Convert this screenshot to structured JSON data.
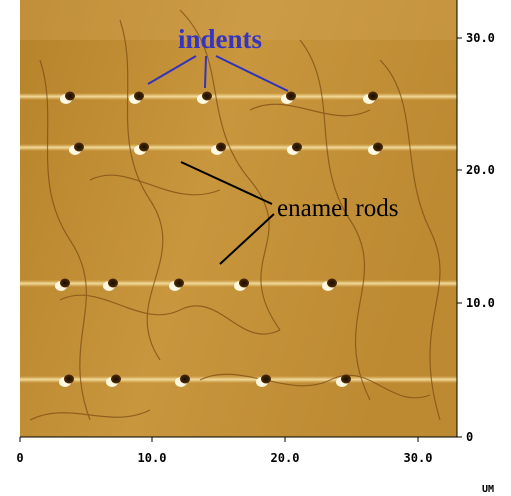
{
  "annotations": {
    "indents": "indents",
    "rods": "enamel rods"
  },
  "right_axis": {
    "ticks": [
      "30.0",
      "20.0",
      "10.0",
      "0"
    ]
  },
  "bottom_axis": {
    "ticks": [
      "0",
      "10.0",
      "20.0",
      "30.0"
    ],
    "unit": "UM"
  }
}
